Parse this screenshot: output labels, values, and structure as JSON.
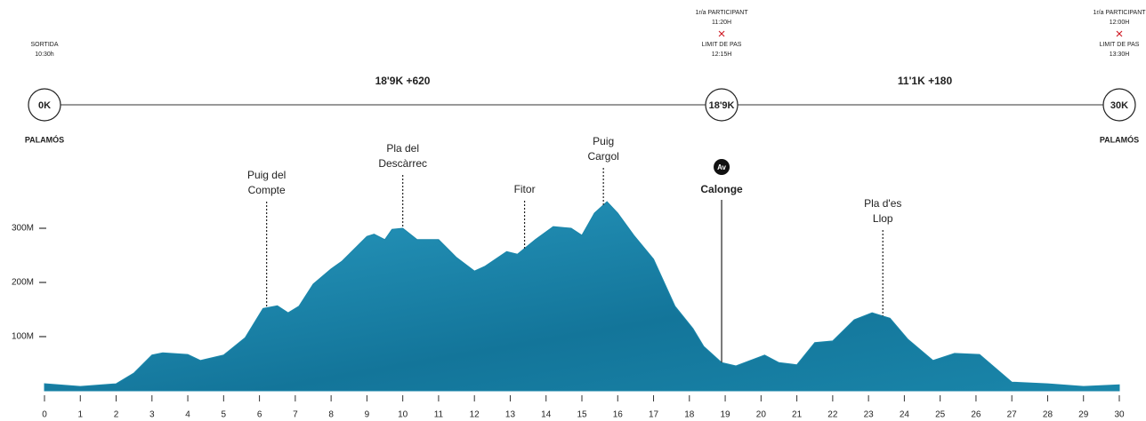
{
  "chart_data": {
    "type": "area",
    "color": "#1a86aa",
    "x": [
      0,
      1,
      2,
      2.5,
      3,
      3.3,
      4,
      4.35,
      5,
      5.6,
      6.1,
      6.5,
      6.8,
      7.1,
      7.5,
      8,
      8.3,
      9,
      9.2,
      9.5,
      9.7,
      10,
      10.4,
      11,
      11.5,
      12,
      12.3,
      12.9,
      13.2,
      13.7,
      14.2,
      14.7,
      15,
      15.35,
      15.7,
      16,
      16.45,
      17,
      17.6,
      18.1,
      18.4,
      18.9,
      19.3,
      20.1,
      20.5,
      21,
      21.5,
      22,
      22.6,
      23.1,
      23.6,
      24.1,
      24.8,
      25.4,
      26.1,
      27,
      28,
      29,
      30
    ],
    "values": [
      13,
      8,
      13,
      33,
      66,
      70,
      67,
      56,
      66,
      98,
      152,
      157,
      144,
      156,
      197,
      225,
      239,
      285,
      289,
      279,
      298,
      300,
      279,
      279,
      246,
      221,
      230,
      257,
      252,
      279,
      303,
      300,
      287,
      328,
      349,
      328,
      287,
      243,
      156,
      115,
      82,
      52,
      46,
      66,
      52,
      48,
      89,
      92,
      131,
      144,
      134,
      95,
      56,
      69,
      67,
      16,
      13,
      8,
      11
    ],
    "xlim": [
      0,
      30
    ],
    "xticks": [
      0,
      1,
      2,
      3,
      4,
      5,
      6,
      7,
      8,
      9,
      10,
      11,
      12,
      13,
      14,
      15,
      16,
      17,
      18,
      19,
      20,
      21,
      22,
      23,
      24,
      25,
      26,
      27,
      28,
      29,
      30
    ],
    "ylim": [
      0,
      400
    ],
    "yticks": [
      {
        "value": 100,
        "label": "100M"
      },
      {
        "value": 200,
        "label": "200M"
      },
      {
        "value": 300,
        "label": "300M"
      }
    ],
    "annotations": [
      {
        "x": 6.2,
        "lines": [
          "Puig del",
          "Compte"
        ]
      },
      {
        "x": 10,
        "lines": [
          "Pla del",
          "Descàrrec"
        ]
      },
      {
        "x": 13.4,
        "lines": [
          "Fitor"
        ]
      },
      {
        "x": 15.6,
        "lines": [
          "Puig",
          "Cargol"
        ]
      },
      {
        "x": 23.4,
        "lines": [
          "Pla d'es",
          "Llop"
        ]
      }
    ],
    "checkpoints": [
      {
        "km": 0,
        "label": "0K",
        "above": [
          "SORTIDA",
          "10:30h"
        ],
        "below": "PALAMÓS"
      },
      {
        "km": 18.9,
        "label": "18'9K",
        "above": [
          "1r/a PARTICIPANT",
          "11:20H",
          "LIMIT DE PAS",
          "12:15H"
        ],
        "badge": "Av",
        "below": "Calonge"
      },
      {
        "km": 30,
        "label": "30K",
        "above": [
          "1r/a PARTICIPANT",
          "12:00H",
          "LIMIT DE PAS",
          "13:30H"
        ],
        "below": "PALAMÓS"
      }
    ],
    "segments": [
      "18'9K +620",
      "11'1K +180"
    ]
  }
}
